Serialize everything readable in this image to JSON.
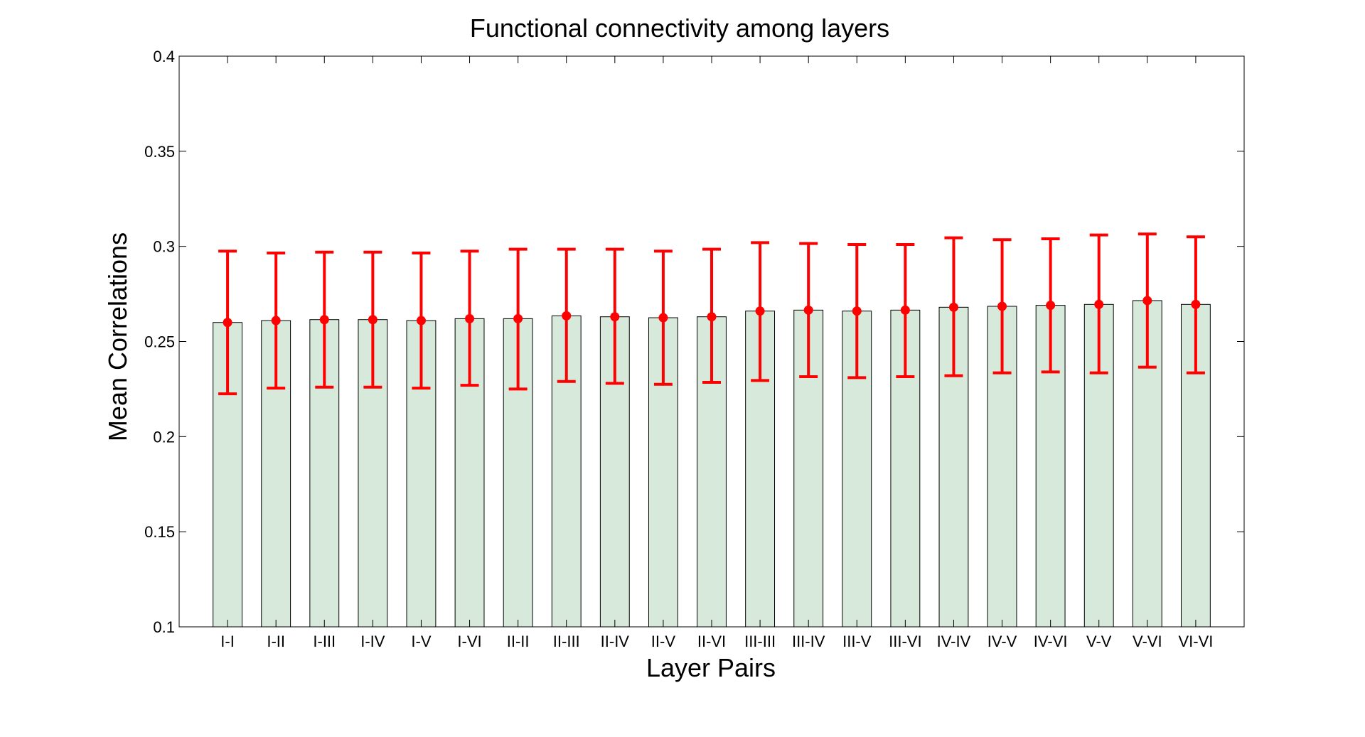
{
  "chart_data": {
    "type": "bar",
    "title": "Functional connectivity among layers",
    "xlabel": "Layer Pairs",
    "ylabel": "Mean Correlations",
    "ylim": [
      0.1,
      0.4
    ],
    "yticks": [
      0.1,
      0.15,
      0.2,
      0.25,
      0.3,
      0.35,
      0.4
    ],
    "ytick_labels": [
      "0.1",
      "0.15",
      "0.2",
      "0.25",
      "0.3",
      "0.35",
      "0.4"
    ],
    "categories": [
      "I-I",
      "I-II",
      "I-III",
      "I-IV",
      "I-V",
      "I-VI",
      "II-II",
      "II-III",
      "II-IV",
      "II-V",
      "II-VI",
      "III-III",
      "III-IV",
      "III-V",
      "III-VI",
      "IV-IV",
      "IV-V",
      "IV-VI",
      "V-V",
      "V-VI",
      "VI-VI"
    ],
    "values": [
      0.26,
      0.261,
      0.2615,
      0.2615,
      0.261,
      0.262,
      0.262,
      0.2635,
      0.263,
      0.2625,
      0.263,
      0.266,
      0.2665,
      0.266,
      0.2665,
      0.268,
      0.2685,
      0.269,
      0.2695,
      0.2715,
      0.2695
    ],
    "error_upper": [
      0.2975,
      0.2965,
      0.297,
      0.297,
      0.2965,
      0.2975,
      0.2985,
      0.2985,
      0.2985,
      0.2975,
      0.2985,
      0.302,
      0.3015,
      0.301,
      0.301,
      0.3045,
      0.3035,
      0.304,
      0.306,
      0.3065,
      0.305
    ],
    "error_lower": [
      0.2225,
      0.2255,
      0.226,
      0.226,
      0.2255,
      0.227,
      0.225,
      0.229,
      0.228,
      0.2275,
      0.2285,
      0.2295,
      0.2315,
      0.231,
      0.2315,
      0.232,
      0.2335,
      0.234,
      0.2335,
      0.2365,
      0.2335
    ],
    "grid": false,
    "colors": {
      "bar_fill": "#d7e9da",
      "bar_edge": "#000000",
      "error": "#ff0000",
      "axes": "#000000"
    }
  }
}
